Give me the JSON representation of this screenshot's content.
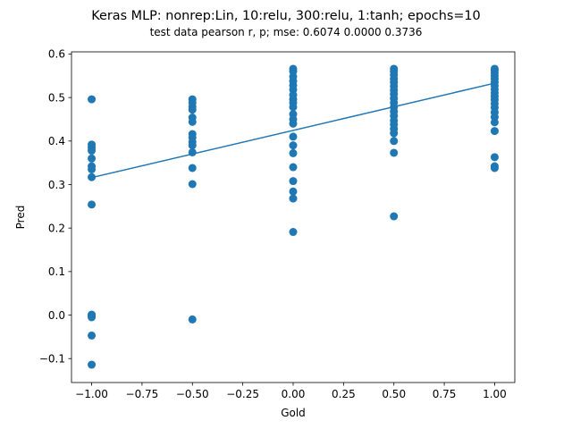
{
  "chart_data": {
    "type": "scatter",
    "title": "Keras MLP: nonrep:Lin, 10:relu, 300:relu, 1:tanh; epochs=10",
    "subtitle": "test data pearson r, p; mse:  0.6074  0.0000  0.3736",
    "xlabel": "Gold",
    "ylabel": "Pred",
    "xlim": [
      -1.1,
      1.1
    ],
    "ylim": [
      -0.155,
      0.605
    ],
    "xticks": [
      -1.0,
      -0.75,
      -0.5,
      -0.25,
      0.0,
      0.25,
      0.5,
      0.75,
      1.0
    ],
    "xtick_labels": [
      "−1.00",
      "−0.75",
      "−0.50",
      "−0.25",
      "0.00",
      "0.25",
      "0.50",
      "0.75",
      "1.00"
    ],
    "yticks": [
      -0.1,
      0.0,
      0.1,
      0.2,
      0.3,
      0.4,
      0.5,
      0.6
    ],
    "ytick_labels": [
      "−0.1",
      "0.0",
      "0.1",
      "0.2",
      "0.3",
      "0.4",
      "0.5",
      "0.6"
    ],
    "grid": false,
    "colors": {
      "points": "#1f77b4",
      "line": "#1f77b4"
    },
    "series": [
      {
        "type": "scatter",
        "points": [
          [
            -1.0,
            0.496
          ],
          [
            -1.0,
            0.392
          ],
          [
            -1.0,
            0.385
          ],
          [
            -1.0,
            0.378
          ],
          [
            -1.0,
            0.36
          ],
          [
            -1.0,
            0.342
          ],
          [
            -1.0,
            0.335
          ],
          [
            -1.0,
            0.317
          ],
          [
            -1.0,
            0.254
          ],
          [
            -1.0,
            0.001
          ],
          [
            -1.0,
            -0.002
          ],
          [
            -1.0,
            -0.005
          ],
          [
            -1.0,
            -0.047
          ],
          [
            -1.0,
            -0.114
          ],
          [
            -0.5,
            0.496
          ],
          [
            -0.5,
            0.488
          ],
          [
            -0.5,
            0.479
          ],
          [
            -0.5,
            0.472
          ],
          [
            -0.5,
            0.454
          ],
          [
            -0.5,
            0.444
          ],
          [
            -0.5,
            0.416
          ],
          [
            -0.5,
            0.408
          ],
          [
            -0.5,
            0.398
          ],
          [
            -0.5,
            0.39
          ],
          [
            -0.5,
            0.374
          ],
          [
            -0.5,
            0.338
          ],
          [
            -0.5,
            0.301
          ],
          [
            -0.5,
            -0.01
          ],
          [
            0.0,
            0.566
          ],
          [
            0.0,
            0.56
          ],
          [
            0.0,
            0.548
          ],
          [
            0.0,
            0.538
          ],
          [
            0.0,
            0.528
          ],
          [
            0.0,
            0.518
          ],
          [
            0.0,
            0.506
          ],
          [
            0.0,
            0.496
          ],
          [
            0.0,
            0.488
          ],
          [
            0.0,
            0.478
          ],
          [
            0.0,
            0.462
          ],
          [
            0.0,
            0.45
          ],
          [
            0.0,
            0.44
          ],
          [
            0.0,
            0.41
          ],
          [
            0.0,
            0.39
          ],
          [
            0.0,
            0.372
          ],
          [
            0.0,
            0.34
          ],
          [
            0.0,
            0.308
          ],
          [
            0.0,
            0.284
          ],
          [
            0.0,
            0.268
          ],
          [
            0.0,
            0.191
          ],
          [
            0.5,
            0.566
          ],
          [
            0.5,
            0.56
          ],
          [
            0.5,
            0.552
          ],
          [
            0.5,
            0.543
          ],
          [
            0.5,
            0.535
          ],
          [
            0.5,
            0.526
          ],
          [
            0.5,
            0.517
          ],
          [
            0.5,
            0.508
          ],
          [
            0.5,
            0.498
          ],
          [
            0.5,
            0.488
          ],
          [
            0.5,
            0.478
          ],
          [
            0.5,
            0.468
          ],
          [
            0.5,
            0.458
          ],
          [
            0.5,
            0.447
          ],
          [
            0.5,
            0.438
          ],
          [
            0.5,
            0.428
          ],
          [
            0.5,
            0.418
          ],
          [
            0.5,
            0.4
          ],
          [
            0.5,
            0.373
          ],
          [
            0.5,
            0.227
          ],
          [
            1.0,
            0.566
          ],
          [
            1.0,
            0.562
          ],
          [
            1.0,
            0.557
          ],
          [
            1.0,
            0.55
          ],
          [
            1.0,
            0.543
          ],
          [
            1.0,
            0.535
          ],
          [
            1.0,
            0.527
          ],
          [
            1.0,
            0.519
          ],
          [
            1.0,
            0.511
          ],
          [
            1.0,
            0.503
          ],
          [
            1.0,
            0.495
          ],
          [
            1.0,
            0.486
          ],
          [
            1.0,
            0.477
          ],
          [
            1.0,
            0.466
          ],
          [
            1.0,
            0.455
          ],
          [
            1.0,
            0.443
          ],
          [
            1.0,
            0.423
          ],
          [
            1.0,
            0.363
          ],
          [
            1.0,
            0.342
          ],
          [
            1.0,
            0.338
          ]
        ]
      },
      {
        "type": "line",
        "x": [
          -1.0,
          1.0
        ],
        "y": [
          0.316,
          0.533
        ]
      }
    ]
  }
}
